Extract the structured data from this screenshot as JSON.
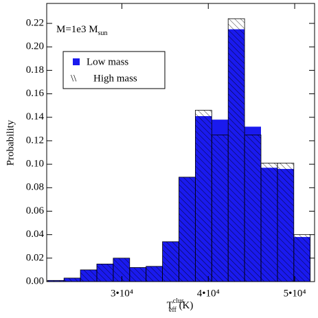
{
  "chart_data": {
    "type": "histogram",
    "bins": [
      21400,
      23300,
      25200,
      27100,
      29000,
      30900,
      32800,
      34700,
      36600,
      38500,
      40400,
      42300,
      44200,
      46100,
      48000,
      49900,
      51800
    ],
    "series": [
      {
        "name": "Low mass",
        "color": "#1a1aee",
        "values": [
          0.001,
          0.003,
          0.01,
          0.015,
          0.02,
          0.012,
          0.013,
          0.034,
          0.089,
          0.141,
          0.138,
          0.215,
          0.132,
          0.097,
          0.096,
          0.038
        ]
      },
      {
        "name": "High mass",
        "color": "#000000",
        "values": [
          0.001,
          0.003,
          0.01,
          0.015,
          0.02,
          0.012,
          0.013,
          0.034,
          0.089,
          0.146,
          0.125,
          0.224,
          0.125,
          0.101,
          0.101,
          0.04
        ]
      }
    ],
    "xlim": [
      21300,
      52300
    ],
    "ylim": [
      0,
      0.237
    ],
    "xticks": [
      {
        "value": 30000,
        "label": "3•10⁴"
      },
      {
        "value": 40000,
        "label": "4•10⁴"
      },
      {
        "value": 50000,
        "label": "5•10⁴"
      }
    ],
    "yticks": [
      {
        "value": 0,
        "label": "0.00"
      },
      {
        "value": 0.02,
        "label": "0.02"
      },
      {
        "value": 0.04,
        "label": "0.04"
      },
      {
        "value": 0.06,
        "label": "0.06"
      },
      {
        "value": 0.08,
        "label": "0.08"
      },
      {
        "value": 0.1,
        "label": "0.10"
      },
      {
        "value": 0.12,
        "label": "0.12"
      },
      {
        "value": 0.14,
        "label": "0.14"
      },
      {
        "value": 0.16,
        "label": "0.16"
      },
      {
        "value": 0.18,
        "label": "0.18"
      },
      {
        "value": 0.2,
        "label": "0.20"
      },
      {
        "value": 0.22,
        "label": "0.22"
      }
    ],
    "ylabel": "Probability",
    "xlabel": {
      "main": "T",
      "sub": "eff",
      "sup": "clus",
      "unit": " (K)"
    },
    "annotation": {
      "main": "M=1e3 M",
      "sub": "sun"
    },
    "legend_symbols": [
      "\\\\"
    ]
  }
}
